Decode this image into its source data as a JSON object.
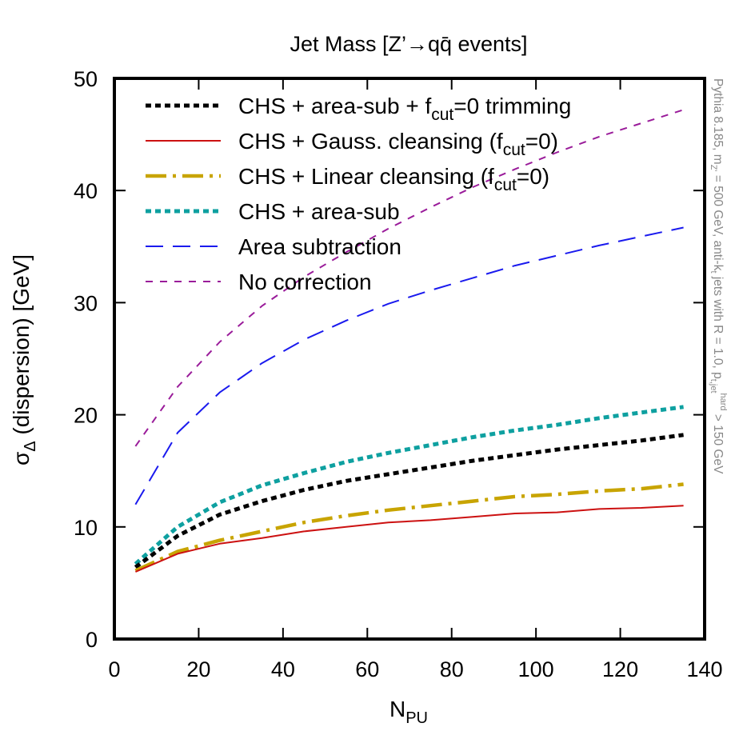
{
  "chart_data": {
    "type": "line",
    "title": "Jet Mass [Z’→qq̄ events]",
    "xlabel": "N_PU",
    "ylabel": "σ_Δ (dispersion) [GeV]",
    "xlim": [
      0,
      140
    ],
    "ylim": [
      0,
      50
    ],
    "x_ticks": [
      0,
      20,
      40,
      60,
      80,
      100,
      120,
      140
    ],
    "y_ticks": [
      0,
      10,
      20,
      30,
      40,
      50
    ],
    "legend_position": "top-left",
    "side_note": "Pythia 8.185, m_Z' = 500 GeV, anti-k_t jets with R = 1.0, p_t,jet^hard > 150 GeV",
    "x": [
      5,
      15,
      25,
      35,
      45,
      55,
      65,
      75,
      85,
      95,
      105,
      115,
      125,
      135
    ],
    "series": [
      {
        "name": "No correction",
        "label": "No correction",
        "color": "#9a1c9a",
        "style": "short-dash",
        "values": [
          17.2,
          22.5,
          26.5,
          29.7,
          32.3,
          34.5,
          36.6,
          38.5,
          40.3,
          41.9,
          43.4,
          44.8,
          46.0,
          47.2
        ]
      },
      {
        "name": "Area subtraction",
        "label": "Area subtraction",
        "color": "#1a1aee",
        "style": "long-dash",
        "values": [
          12.0,
          18.4,
          22.0,
          24.6,
          26.7,
          28.4,
          29.9,
          31.1,
          32.2,
          33.3,
          34.2,
          35.1,
          35.9,
          36.7
        ]
      },
      {
        "name": "CHS + area-sub",
        "label": "CHS + area-sub",
        "color": "#0ea0a0",
        "style": "dots",
        "values": [
          6.7,
          10.0,
          12.2,
          13.7,
          14.8,
          15.8,
          16.6,
          17.3,
          18.0,
          18.6,
          19.1,
          19.7,
          20.2,
          20.7
        ]
      },
      {
        "name": "CHS + area-sub + f_cut=0 trimming",
        "label_parts": [
          "CHS + area-sub + f",
          "cut",
          "=0 trimming"
        ],
        "color": "#000000",
        "style": "dots",
        "values": [
          6.4,
          9.2,
          11.1,
          12.3,
          13.3,
          14.1,
          14.7,
          15.3,
          15.9,
          16.4,
          16.9,
          17.3,
          17.7,
          18.2
        ]
      },
      {
        "name": "CHS + Linear cleansing (f_cut=0)",
        "label_parts": [
          "CHS + Linear cleansing (f",
          "cut",
          "=0)"
        ],
        "color": "#c8a400",
        "style": "dash-dot",
        "values": [
          6.1,
          7.8,
          8.8,
          9.6,
          10.4,
          11.0,
          11.5,
          11.9,
          12.3,
          12.7,
          12.9,
          13.2,
          13.4,
          13.8
        ]
      },
      {
        "name": "CHS + Gauss. cleansing (f_cut=0)",
        "label_parts": [
          "CHS + Gauss. cleansing (f",
          "cut",
          "=0)"
        ],
        "color": "#cc1111",
        "style": "solid",
        "values": [
          6.0,
          7.6,
          8.5,
          9.0,
          9.6,
          10.0,
          10.4,
          10.6,
          10.9,
          11.2,
          11.3,
          11.6,
          11.7,
          11.9
        ]
      }
    ],
    "legend_order": [
      3,
      5,
      4,
      2,
      1,
      0
    ]
  }
}
